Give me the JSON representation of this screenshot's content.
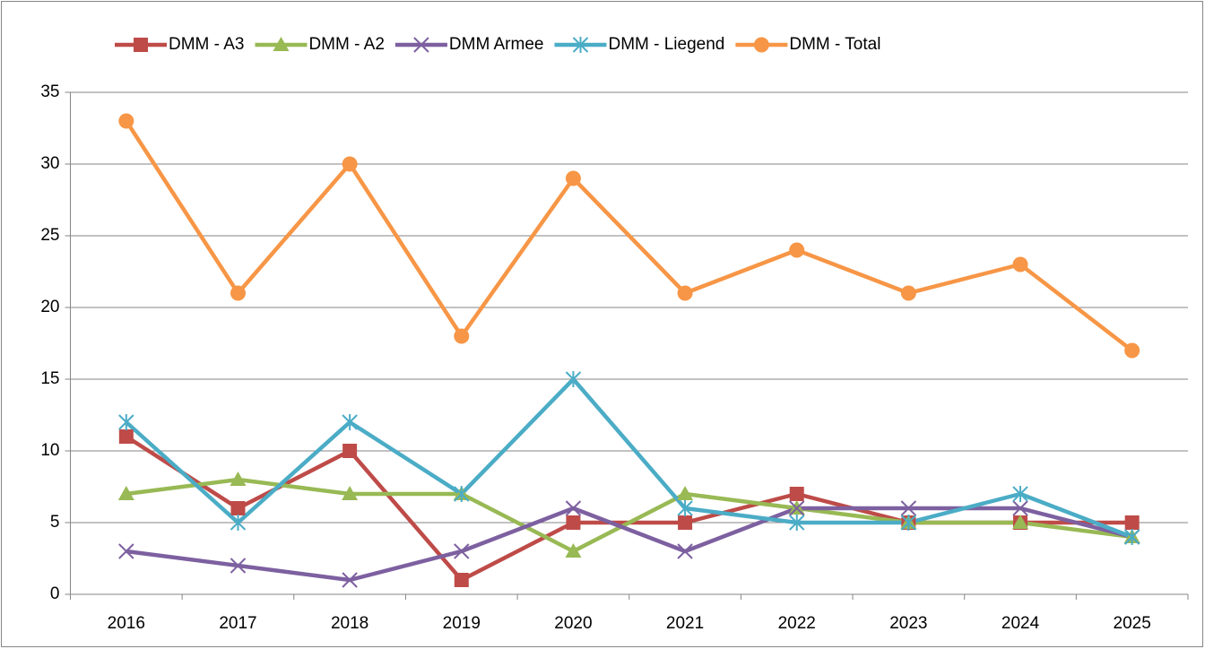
{
  "chart_data": {
    "type": "line",
    "categories": [
      "2016",
      "2017",
      "2018",
      "2019",
      "2020",
      "2021",
      "2022",
      "2023",
      "2024",
      "2025"
    ],
    "series": [
      {
        "name": "DMM - A3",
        "color": "#be4b48",
        "marker": "square",
        "values": [
          11,
          6,
          10,
          1,
          5,
          5,
          7,
          5,
          5,
          5
        ]
      },
      {
        "name": "DMM - A2",
        "color": "#98b954",
        "marker": "triangle",
        "values": [
          7,
          8,
          7,
          7,
          3,
          7,
          6,
          5,
          5,
          4
        ]
      },
      {
        "name": "DMM Armee",
        "color": "#7d60a0",
        "marker": "x",
        "values": [
          3,
          2,
          1,
          3,
          6,
          3,
          6,
          6,
          6,
          4
        ]
      },
      {
        "name": "DMM - Liegend",
        "color": "#4bacc6",
        "marker": "star",
        "values": [
          12,
          5,
          12,
          7,
          15,
          6,
          5,
          5,
          7,
          4
        ]
      },
      {
        "name": "DMM - Total",
        "color": "#f79646",
        "marker": "circle",
        "values": [
          33,
          21,
          30,
          18,
          29,
          21,
          24,
          21,
          23,
          17
        ]
      }
    ],
    "ylim": [
      0,
      35
    ],
    "yticks": [
      0,
      5,
      10,
      15,
      20,
      25,
      30,
      35
    ],
    "grid": true,
    "legend": "top"
  }
}
